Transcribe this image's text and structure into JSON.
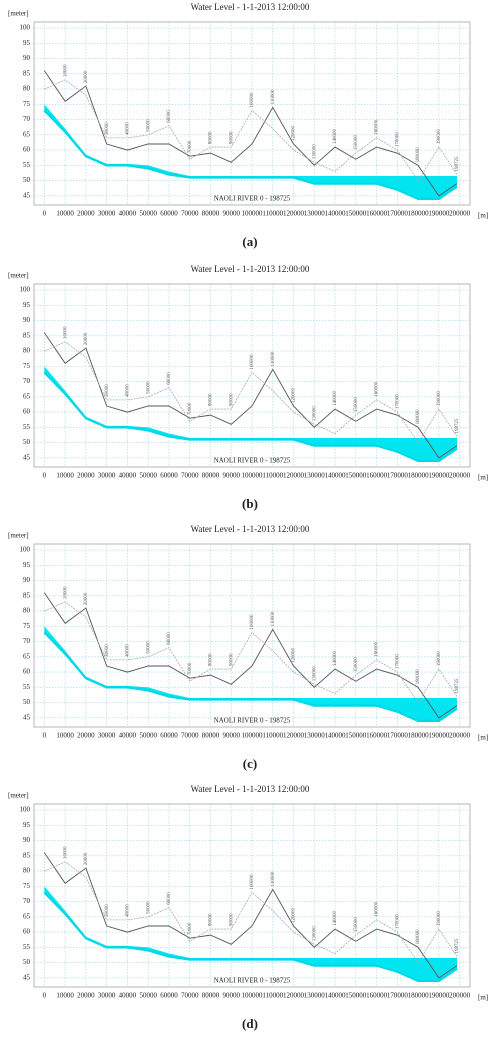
{
  "chart_data": [
    {
      "type": "line",
      "title": "Water Level  - 1-1-2013  12:00:00",
      "y_label": "[meter]",
      "x_label": "[m]",
      "annotation": "NAOLI RIVER 0 - 198725",
      "caption": "(a)",
      "x": [
        0,
        10000,
        20000,
        30000,
        40000,
        50000,
        60000,
        70000,
        80000,
        90000,
        100000,
        110000,
        120000,
        130000,
        140000,
        150000,
        160000,
        170000,
        180000,
        190000,
        198725
      ],
      "series": [
        {
          "color": "#555555",
          "values": [
            86,
            76,
            81,
            62,
            60,
            62,
            62,
            58,
            59,
            56,
            62,
            74,
            62,
            55,
            61,
            57,
            61,
            59,
            55,
            45,
            49
          ]
        },
        {
          "color": "#aaaaaa",
          "values": [
            80,
            83,
            78,
            64,
            64,
            65,
            68,
            57,
            61,
            61,
            73,
            67,
            60,
            56,
            53,
            59,
            64,
            60,
            50,
            61,
            52
          ]
        },
        {
          "color": "#00d8e8",
          "values": [
            73,
            66,
            58,
            55,
            55,
            54,
            52,
            51,
            51,
            51,
            51,
            51,
            51,
            49,
            49,
            49,
            49,
            47,
            44,
            44,
            48
          ]
        },
        {
          "color": "#00e5f0",
          "values": [
            75,
            67,
            58.5,
            55.5,
            55.5,
            55,
            53,
            51.5,
            51.5,
            51.5,
            51.5,
            51.5,
            51.5,
            51.5,
            51.5,
            51.5,
            51.5,
            51.5,
            51.5,
            51.5,
            51.5
          ]
        }
      ],
      "xlim": [
        -5000,
        205000
      ],
      "ylim": [
        42,
        102
      ],
      "xticks": [
        0,
        10000,
        20000,
        30000,
        40000,
        50000,
        60000,
        70000,
        80000,
        90000,
        100000,
        110000,
        120000,
        130000,
        140000,
        150000,
        160000,
        170000,
        180000,
        190000,
        200000
      ],
      "yticks": [
        45,
        50,
        55,
        60,
        65,
        70,
        75,
        80,
        85,
        90,
        95,
        100
      ],
      "grid": true
    },
    {
      "type": "line",
      "title": "Water Level  - 1-1-2013  12:00:00",
      "y_label": "[meter]",
      "x_label": "[m]",
      "annotation": "NAOLI RIVER 0 - 198725",
      "caption": "(b)",
      "x": [
        0,
        10000,
        20000,
        30000,
        40000,
        50000,
        60000,
        70000,
        80000,
        90000,
        100000,
        110000,
        120000,
        130000,
        140000,
        150000,
        160000,
        170000,
        180000,
        190000,
        198725
      ],
      "series": [
        {
          "color": "#555555",
          "values": [
            86,
            76,
            81,
            62,
            60,
            62,
            62,
            58,
            59,
            56,
            62,
            74,
            62,
            55,
            61,
            57,
            61,
            59,
            55,
            45,
            49
          ]
        },
        {
          "color": "#aaaaaa",
          "values": [
            80,
            83,
            78,
            64,
            64,
            65,
            68,
            57,
            61,
            61,
            73,
            67,
            60,
            56,
            53,
            59,
            64,
            60,
            50,
            61,
            52
          ]
        },
        {
          "color": "#00d8e8",
          "values": [
            73,
            66,
            58,
            55,
            55,
            54,
            52,
            51,
            51,
            51,
            51,
            51,
            51,
            49,
            49,
            49,
            49,
            47,
            44,
            44,
            48
          ]
        },
        {
          "color": "#00e5f0",
          "values": [
            75,
            67,
            58.5,
            55.5,
            55.5,
            55,
            53,
            51.5,
            51.5,
            51.5,
            51.5,
            51.5,
            51.5,
            51.5,
            51.5,
            51.5,
            51.5,
            51.5,
            51.5,
            51.5,
            51.5
          ]
        }
      ],
      "xlim": [
        -5000,
        205000
      ],
      "ylim": [
        42,
        102
      ],
      "xticks": [
        0,
        10000,
        20000,
        30000,
        40000,
        50000,
        60000,
        70000,
        80000,
        90000,
        100000,
        110000,
        120000,
        130000,
        140000,
        150000,
        160000,
        170000,
        180000,
        190000,
        200000
      ],
      "yticks": [
        45,
        50,
        55,
        60,
        65,
        70,
        75,
        80,
        85,
        90,
        95,
        100
      ],
      "grid": true
    },
    {
      "type": "line",
      "title": "Water Level  - 1-1-2013  12:00:00",
      "y_label": "[meter]",
      "x_label": "[m]",
      "annotation": "NAOLI RIVER 0 - 198725",
      "caption": "(c)",
      "x": [
        0,
        10000,
        20000,
        30000,
        40000,
        50000,
        60000,
        70000,
        80000,
        90000,
        100000,
        110000,
        120000,
        130000,
        140000,
        150000,
        160000,
        170000,
        180000,
        190000,
        198725
      ],
      "series": [
        {
          "color": "#555555",
          "values": [
            86,
            76,
            81,
            62,
            60,
            62,
            62,
            58,
            59,
            56,
            62,
            74,
            62,
            55,
            61,
            57,
            61,
            59,
            55,
            45,
            49
          ]
        },
        {
          "color": "#aaaaaa",
          "values": [
            80,
            83,
            78,
            64,
            64,
            65,
            68,
            57,
            61,
            61,
            73,
            67,
            60,
            56,
            53,
            59,
            64,
            60,
            50,
            61,
            52
          ]
        },
        {
          "color": "#00d8e8",
          "values": [
            73,
            66,
            58,
            55,
            55,
            54,
            52,
            51,
            51,
            51,
            51,
            51,
            51,
            49,
            49,
            49,
            49,
            47,
            44,
            44,
            48
          ]
        },
        {
          "color": "#00e5f0",
          "values": [
            75,
            67,
            58.5,
            55.5,
            55.5,
            55,
            53,
            51.5,
            51.5,
            51.5,
            51.5,
            51.5,
            51.5,
            51.5,
            51.5,
            51.5,
            51.5,
            51.5,
            51.5,
            51.5,
            51.5
          ]
        }
      ],
      "xlim": [
        -5000,
        205000
      ],
      "ylim": [
        42,
        102
      ],
      "xticks": [
        0,
        10000,
        20000,
        30000,
        40000,
        50000,
        60000,
        70000,
        80000,
        90000,
        100000,
        110000,
        120000,
        130000,
        140000,
        150000,
        160000,
        170000,
        180000,
        190000,
        200000
      ],
      "yticks": [
        45,
        50,
        55,
        60,
        65,
        70,
        75,
        80,
        85,
        90,
        95,
        100
      ],
      "grid": true
    },
    {
      "type": "line",
      "title": "Water Level  - 1-1-2013  12:00:00",
      "y_label": "[meter]",
      "x_label": "[m]",
      "annotation": "NAOLI RIVER 0 - 198725",
      "caption": "(d)",
      "x": [
        0,
        10000,
        20000,
        30000,
        40000,
        50000,
        60000,
        70000,
        80000,
        90000,
        100000,
        110000,
        120000,
        130000,
        140000,
        150000,
        160000,
        170000,
        180000,
        190000,
        198725
      ],
      "series": [
        {
          "color": "#555555",
          "values": [
            86,
            76,
            81,
            62,
            60,
            62,
            62,
            58,
            59,
            56,
            62,
            74,
            62,
            55,
            61,
            57,
            61,
            59,
            55,
            45,
            49
          ]
        },
        {
          "color": "#aaaaaa",
          "values": [
            80,
            83,
            78,
            64,
            64,
            65,
            68,
            57,
            61,
            61,
            73,
            67,
            60,
            56,
            53,
            59,
            64,
            60,
            50,
            61,
            52
          ]
        },
        {
          "color": "#00d8e8",
          "values": [
            73,
            66,
            58,
            55,
            55,
            54,
            52,
            51,
            51,
            51,
            51,
            51,
            51,
            49,
            49,
            49,
            49,
            47,
            44,
            44,
            48
          ]
        },
        {
          "color": "#00e5f0",
          "values": [
            75,
            67,
            58.5,
            55.5,
            55.5,
            55,
            53,
            51.5,
            51.5,
            51.5,
            51.5,
            51.5,
            51.5,
            51.5,
            51.5,
            51.5,
            51.5,
            51.5,
            51.5,
            51.5,
            51.5
          ]
        }
      ],
      "xlim": [
        -5000,
        205000
      ],
      "ylim": [
        42,
        102
      ],
      "xticks": [
        0,
        10000,
        20000,
        30000,
        40000,
        50000,
        60000,
        70000,
        80000,
        90000,
        100000,
        110000,
        120000,
        130000,
        140000,
        150000,
        160000,
        170000,
        180000,
        190000,
        200000
      ],
      "yticks": [
        45,
        50,
        55,
        60,
        65,
        70,
        75,
        80,
        85,
        90,
        95,
        100
      ],
      "grid": true
    }
  ]
}
